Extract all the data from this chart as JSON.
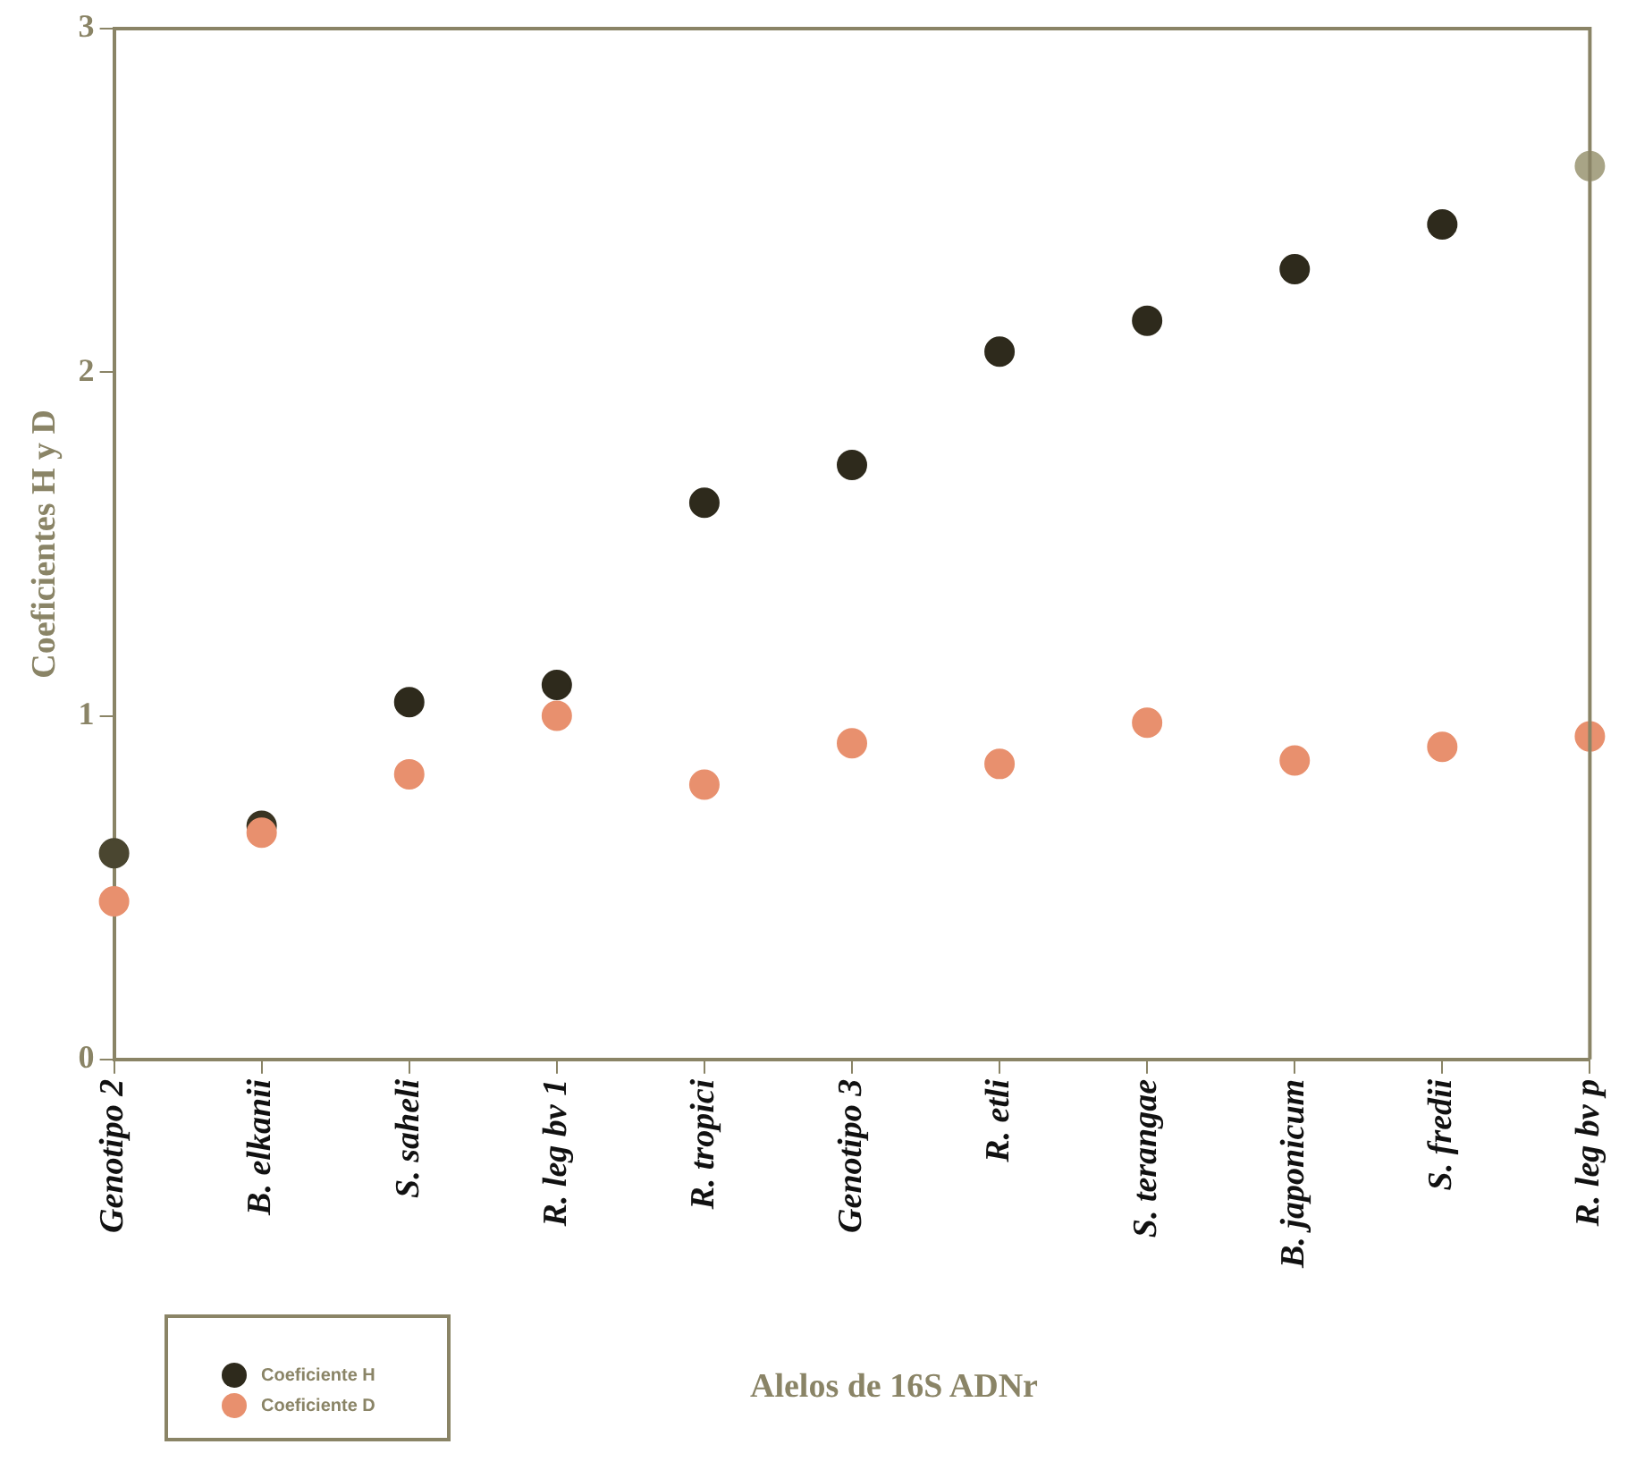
{
  "chart_data": {
    "type": "scatter",
    "xlabel": "Alelos de 16S ADNr",
    "ylabel": "Coeficientes H y D",
    "categories": [
      "Genotipo 2",
      "B. elkanii",
      "S. saheli",
      "R. leg bv 1",
      "R. tropici",
      "Genotipo 3",
      "R. etli",
      "S. terangae",
      "B. japonicum",
      "S. fredii",
      "R. leg bv p"
    ],
    "series": [
      {
        "name": "Coeficiente H",
        "color": "#2e2a1c",
        "colors": [
          "#4a4630",
          "#3a3422",
          "#2e2a1c",
          "#2e2a1c",
          "#2e2a1c",
          "#2e2a1c",
          "#2e2a1c",
          "#2e2a1c",
          "#2e2a1c",
          "#2e2a1c",
          "#a8a486"
        ],
        "values": [
          0.6,
          0.68,
          1.04,
          1.09,
          1.62,
          1.73,
          2.06,
          2.15,
          2.3,
          2.43,
          2.6
        ]
      },
      {
        "name": "Coeficiente D",
        "color": "#e8906e",
        "values": [
          0.46,
          0.66,
          0.83,
          1.0,
          0.8,
          0.92,
          0.86,
          0.98,
          0.87,
          0.91,
          0.94
        ]
      }
    ],
    "ylim": [
      0,
      3
    ],
    "yticks": [
      0,
      1,
      2,
      3
    ],
    "grid": false,
    "legend": "bottom left",
    "marker": "circle"
  }
}
